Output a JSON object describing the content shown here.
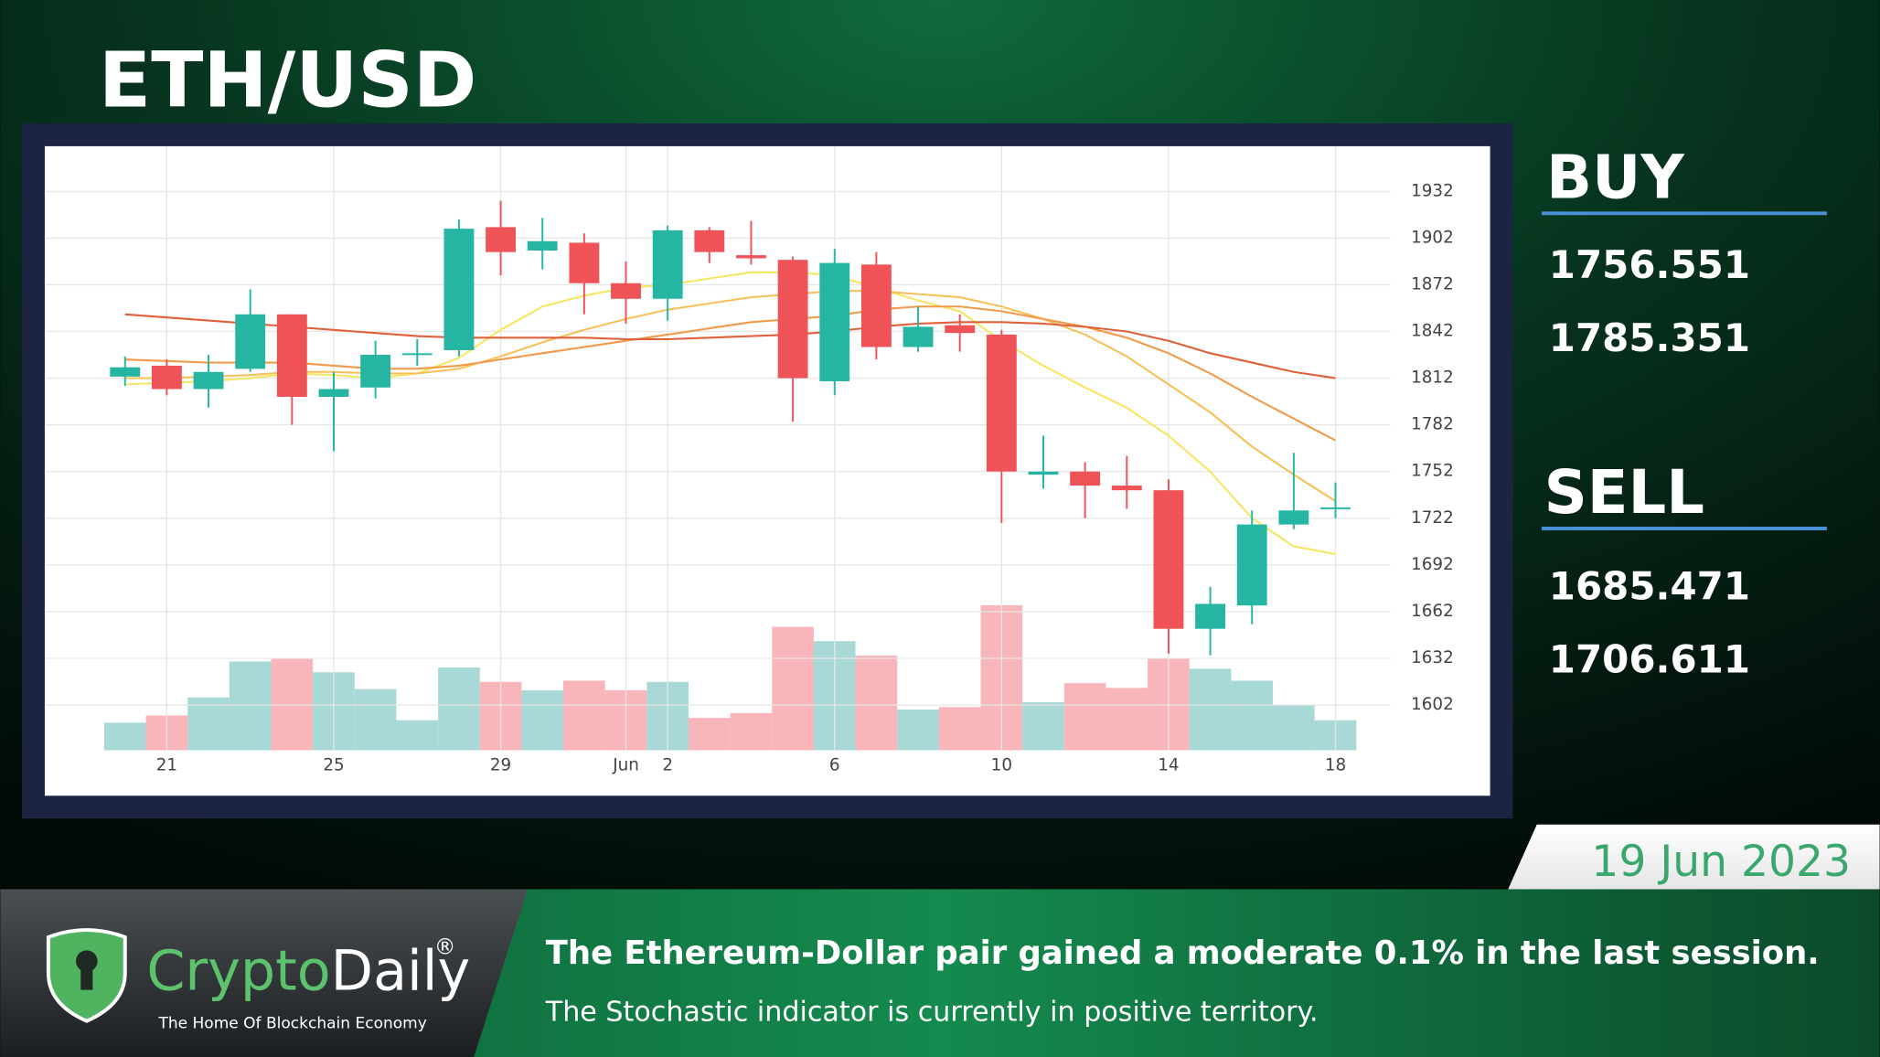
{
  "chart_data": {
    "type": "candlestick",
    "title": "ETH/USD",
    "categories": [
      null,
      "21",
      null,
      null,
      null,
      "25",
      null,
      null,
      null,
      "29",
      null,
      null,
      "Jun",
      "2",
      null,
      null,
      null,
      "6",
      null,
      null,
      null,
      "10",
      null,
      null,
      null,
      "14",
      null,
      null,
      null,
      "18"
    ],
    "open": [
      1813,
      1820,
      1805,
      1818,
      1853,
      1800,
      1806,
      1827,
      1830,
      1909,
      1894,
      1899,
      1873,
      1863,
      1907,
      1891,
      1888,
      1810,
      1885,
      1832,
      1846,
      1840,
      1750,
      1752,
      1743,
      1740,
      1651,
      1666,
      1718,
      1728
    ],
    "high": [
      1826,
      1824,
      1827,
      1869,
      1853,
      1816,
      1836,
      1837,
      1914,
      1926,
      1915,
      1905,
      1887,
      1910,
      1909,
      1913,
      1890,
      1895,
      1893,
      1858,
      1853,
      1843,
      1775,
      1758,
      1762,
      1747,
      1678,
      1727,
      1764,
      1745
    ],
    "low": [
      1807,
      1801,
      1793,
      1816,
      1782,
      1765,
      1799,
      1820,
      1826,
      1878,
      1882,
      1853,
      1847,
      1849,
      1886,
      1885,
      1784,
      1801,
      1824,
      1829,
      1829,
      1719,
      1741,
      1722,
      1728,
      1635,
      1634,
      1654,
      1715,
      1722
    ],
    "close": [
      1819,
      1805,
      1816,
      1853,
      1800,
      1805,
      1827,
      1828,
      1908,
      1893,
      1900,
      1873,
      1863,
      1907,
      1893,
      1889,
      1812,
      1886,
      1832,
      1845,
      1841,
      1752,
      1752,
      1743,
      1740,
      1651,
      1667,
      1718,
      1727,
      1729
    ],
    "volume": [
      23,
      29,
      44,
      74,
      77,
      65,
      51,
      25,
      69,
      57,
      50,
      58,
      50,
      57,
      27,
      31,
      103,
      91,
      79,
      34,
      36,
      121,
      40,
      56,
      52,
      77,
      68,
      58,
      38,
      25
    ],
    "moving_averages": [
      {
        "color": "#f5e663",
        "values": [
          1808,
          1809,
          1810,
          1812,
          1815,
          1814,
          1812,
          1815,
          1825,
          1843,
          1858,
          1865,
          1870,
          1872,
          1876,
          1880,
          1880,
          1878,
          1870,
          1862,
          1855,
          1836,
          1820,
          1806,
          1793,
          1775,
          1752,
          1722,
          1704,
          1699
        ]
      },
      {
        "color": "#f6c15a",
        "values": [
          1812,
          1812,
          1813,
          1814,
          1816,
          1816,
          1815,
          1815,
          1818,
          1826,
          1835,
          1843,
          1850,
          1856,
          1860,
          1864,
          1866,
          1868,
          1868,
          1866,
          1864,
          1858,
          1850,
          1840,
          1826,
          1808,
          1790,
          1768,
          1750,
          1733
        ]
      },
      {
        "color": "#f29a4a",
        "values": [
          1824,
          1823,
          1822,
          1822,
          1822,
          1820,
          1818,
          1818,
          1820,
          1824,
          1828,
          1832,
          1836,
          1840,
          1844,
          1848,
          1850,
          1852,
          1856,
          1858,
          1858,
          1855,
          1850,
          1845,
          1838,
          1828,
          1815,
          1800,
          1786,
          1772
        ]
      },
      {
        "color": "#e0603a",
        "values": [
          1853,
          1851,
          1849,
          1847,
          1845,
          1843,
          1841,
          1839,
          1838,
          1838,
          1838,
          1838,
          1837,
          1837,
          1838,
          1839,
          1840,
          1842,
          1845,
          1847,
          1848,
          1848,
          1847,
          1845,
          1842,
          1836,
          1828,
          1822,
          1816,
          1812
        ]
      }
    ],
    "up_color": "#26b5a2",
    "down_color": "#ef5358",
    "up_volume_color": "#a9d9d6",
    "down_volume_color": "#f8b6ba",
    "ylim": [
      1573,
      1961
    ],
    "yticks": [
      1602,
      1632,
      1662,
      1692,
      1722,
      1752,
      1782,
      1812,
      1842,
      1872,
      1902,
      1932
    ],
    "grid": true
  },
  "panel": {
    "buy_label": "BUY",
    "buy_values": [
      "1756.551",
      "1785.351"
    ],
    "sell_label": "SELL",
    "sell_values": [
      "1685.471",
      "1706.611"
    ],
    "date": "19 Jun 2023"
  },
  "brand": {
    "name_first": "Crypto",
    "name_second": "Daily",
    "mark": "®",
    "tagline": "The Home Of Blockchain Economy"
  },
  "ticker": {
    "headline": "The Ethereum-Dollar pair gained a moderate 0.1% in the last session.",
    "subline": "The Stochastic indicator is currently in positive territory."
  }
}
